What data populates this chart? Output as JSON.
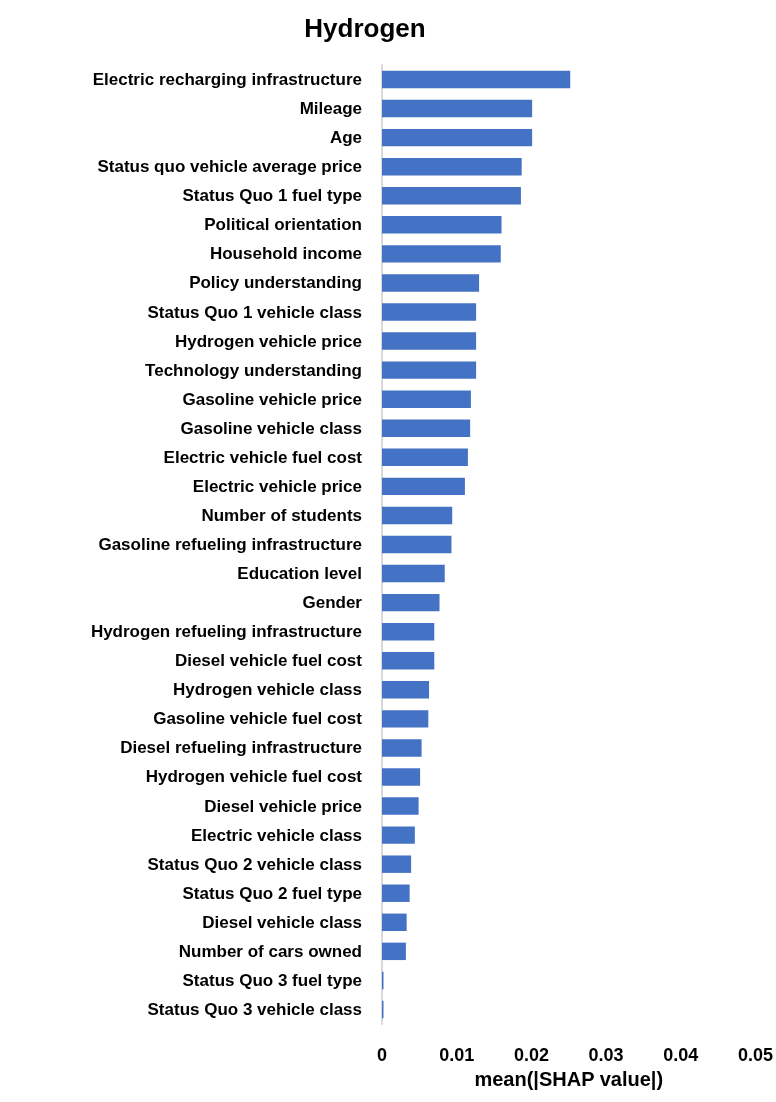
{
  "chart_data": {
    "type": "bar",
    "orientation": "horizontal",
    "title": "Hydrogen",
    "xlabel": "mean(|SHAP value|)",
    "categories": [
      "Electric recharging infrastructure",
      "Mileage",
      "Age",
      "Status quo vehicle average price",
      "Status Quo 1 fuel type",
      "Political orientation",
      "Household income",
      "Policy understanding",
      "Status Quo 1 vehicle class",
      "Hydrogen vehicle price",
      "Technology understanding",
      "Gasoline vehicle price",
      "Gasoline vehicle class",
      "Electric vehicle fuel cost",
      "Electric vehicle price",
      "Number of students",
      "Gasoline refueling infrastructure",
      "Education level",
      "Gender",
      "Hydrogen refueling infrastructure",
      "Diesel vehicle fuel cost",
      "Hydrogen vehicle class",
      "Gasoline vehicle fuel cost",
      "Diesel refueling infrastructure",
      "Hydrogen vehicle fuel cost",
      "Diesel vehicle price",
      "Electric vehicle class",
      "Status Quo 2 vehicle class",
      "Status Quo 2 fuel type",
      "Diesel vehicle class",
      "Number of cars owned",
      "Status Quo 3 fuel type",
      "Status Quo 3 vehicle class"
    ],
    "values": [
      0.0252,
      0.0201,
      0.0201,
      0.0187,
      0.0186,
      0.016,
      0.0159,
      0.013,
      0.0126,
      0.0126,
      0.0126,
      0.0119,
      0.0118,
      0.0115,
      0.0111,
      0.0094,
      0.0093,
      0.0084,
      0.0077,
      0.007,
      0.007,
      0.0063,
      0.0062,
      0.0053,
      0.0051,
      0.0049,
      0.0044,
      0.0039,
      0.0037,
      0.0033,
      0.0032,
      0.0002,
      0.0002
    ],
    "color": "#4472c4",
    "xlim": [
      0,
      0.05
    ],
    "xticks": [
      0,
      0.01,
      0.02,
      0.03,
      0.04,
      0.05
    ],
    "grid": false
  }
}
